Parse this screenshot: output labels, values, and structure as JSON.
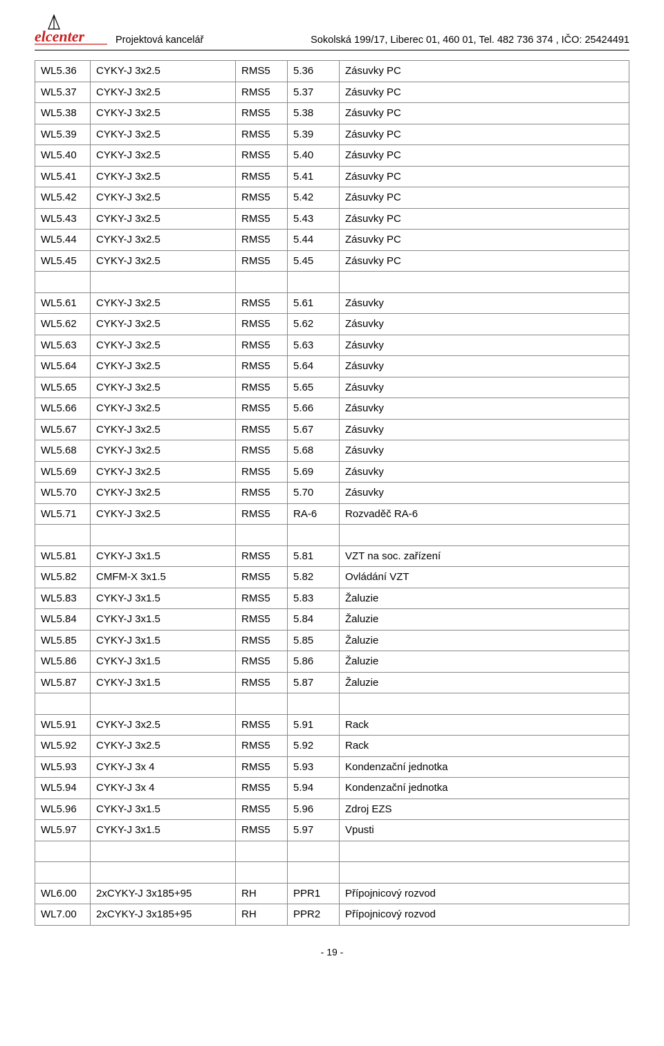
{
  "header": {
    "left": "Projektová kancelář",
    "right": "Sokolská 199/17, Liberec 01, 460 01, Tel. 482 736 374 , IČO: 25424491",
    "logo_text": "elcenter",
    "logo_color": "#c81e1e"
  },
  "footer": {
    "page": "- 19 -"
  },
  "table": {
    "rows": [
      [
        "WL5.36",
        "CYKY-J 3x2.5",
        "RMS5",
        "5.36",
        "Zásuvky PC"
      ],
      [
        "WL5.37",
        "CYKY-J 3x2.5",
        "RMS5",
        "5.37",
        "Zásuvky PC"
      ],
      [
        "WL5.38",
        "CYKY-J 3x2.5",
        "RMS5",
        "5.38",
        "Zásuvky PC"
      ],
      [
        "WL5.39",
        "CYKY-J 3x2.5",
        "RMS5",
        "5.39",
        "Zásuvky PC"
      ],
      [
        "WL5.40",
        "CYKY-J 3x2.5",
        "RMS5",
        "5.40",
        "Zásuvky PC"
      ],
      [
        "WL5.41",
        "CYKY-J 3x2.5",
        "RMS5",
        "5.41",
        "Zásuvky PC"
      ],
      [
        "WL5.42",
        "CYKY-J 3x2.5",
        "RMS5",
        "5.42",
        "Zásuvky PC"
      ],
      [
        "WL5.43",
        "CYKY-J 3x2.5",
        "RMS5",
        "5.43",
        "Zásuvky PC"
      ],
      [
        "WL5.44",
        "CYKY-J 3x2.5",
        "RMS5",
        "5.44",
        "Zásuvky PC"
      ],
      [
        "WL5.45",
        "CYKY-J 3x2.5",
        "RMS5",
        "5.45",
        "Zásuvky PC"
      ],
      [
        "",
        "",
        "",
        "",
        ""
      ],
      [
        "WL5.61",
        "CYKY-J 3x2.5",
        "RMS5",
        "5.61",
        "Zásuvky"
      ],
      [
        "WL5.62",
        "CYKY-J 3x2.5",
        "RMS5",
        "5.62",
        "Zásuvky"
      ],
      [
        "WL5.63",
        "CYKY-J 3x2.5",
        "RMS5",
        "5.63",
        "Zásuvky"
      ],
      [
        "WL5.64",
        "CYKY-J 3x2.5",
        "RMS5",
        "5.64",
        "Zásuvky"
      ],
      [
        "WL5.65",
        "CYKY-J 3x2.5",
        "RMS5",
        "5.65",
        "Zásuvky"
      ],
      [
        "WL5.66",
        "CYKY-J 3x2.5",
        "RMS5",
        "5.66",
        "Zásuvky"
      ],
      [
        "WL5.67",
        "CYKY-J 3x2.5",
        "RMS5",
        "5.67",
        "Zásuvky"
      ],
      [
        "WL5.68",
        "CYKY-J 3x2.5",
        "RMS5",
        "5.68",
        "Zásuvky"
      ],
      [
        "WL5.69",
        "CYKY-J 3x2.5",
        "RMS5",
        "5.69",
        "Zásuvky"
      ],
      [
        "WL5.70",
        "CYKY-J 3x2.5",
        "RMS5",
        "5.70",
        "Zásuvky"
      ],
      [
        "WL5.71",
        "CYKY-J 3x2.5",
        "RMS5",
        "RA-6",
        "Rozvaděč RA-6"
      ],
      [
        "",
        "",
        "",
        "",
        ""
      ],
      [
        "WL5.81",
        "CYKY-J 3x1.5",
        "RMS5",
        "5.81",
        "VZT na soc. zařízení"
      ],
      [
        "WL5.82",
        "CMFM-X 3x1.5",
        "RMS5",
        "5.82",
        "Ovládání VZT"
      ],
      [
        "WL5.83",
        "CYKY-J 3x1.5",
        "RMS5",
        "5.83",
        "Žaluzie"
      ],
      [
        "WL5.84",
        "CYKY-J 3x1.5",
        "RMS5",
        "5.84",
        "Žaluzie"
      ],
      [
        "WL5.85",
        "CYKY-J 3x1.5",
        "RMS5",
        "5.85",
        "Žaluzie"
      ],
      [
        "WL5.86",
        "CYKY-J 3x1.5",
        "RMS5",
        "5.86",
        "Žaluzie"
      ],
      [
        "WL5.87",
        "CYKY-J 3x1.5",
        "RMS5",
        "5.87",
        "Žaluzie"
      ],
      [
        "",
        "",
        "",
        "",
        ""
      ],
      [
        "WL5.91",
        "CYKY-J 3x2.5",
        "RMS5",
        "5.91",
        "Rack"
      ],
      [
        "WL5.92",
        "CYKY-J 3x2.5",
        "RMS5",
        "5.92",
        "Rack"
      ],
      [
        "WL5.93",
        "CYKY-J 3x 4",
        "RMS5",
        "5.93",
        "Kondenzační jednotka"
      ],
      [
        "WL5.94",
        "CYKY-J 3x 4",
        "RMS5",
        "5.94",
        "Kondenzační jednotka"
      ],
      [
        "WL5.96",
        "CYKY-J 3x1.5",
        "RMS5",
        "5.96",
        "Zdroj EZS"
      ],
      [
        "WL5.97",
        "CYKY-J 3x1.5",
        "RMS5",
        "5.97",
        "Vpusti"
      ],
      [
        "",
        "",
        "",
        "",
        ""
      ],
      [
        "",
        "",
        "",
        "",
        ""
      ],
      [
        "WL6.00",
        "2xCYKY-J 3x185+95",
        "RH",
        "PPR1",
        "Přípojnicový rozvod"
      ],
      [
        "WL7.00",
        "2xCYKY-J 3x185+95",
        "RH",
        "PPR2",
        "Přípojnicový rozvod"
      ]
    ]
  }
}
